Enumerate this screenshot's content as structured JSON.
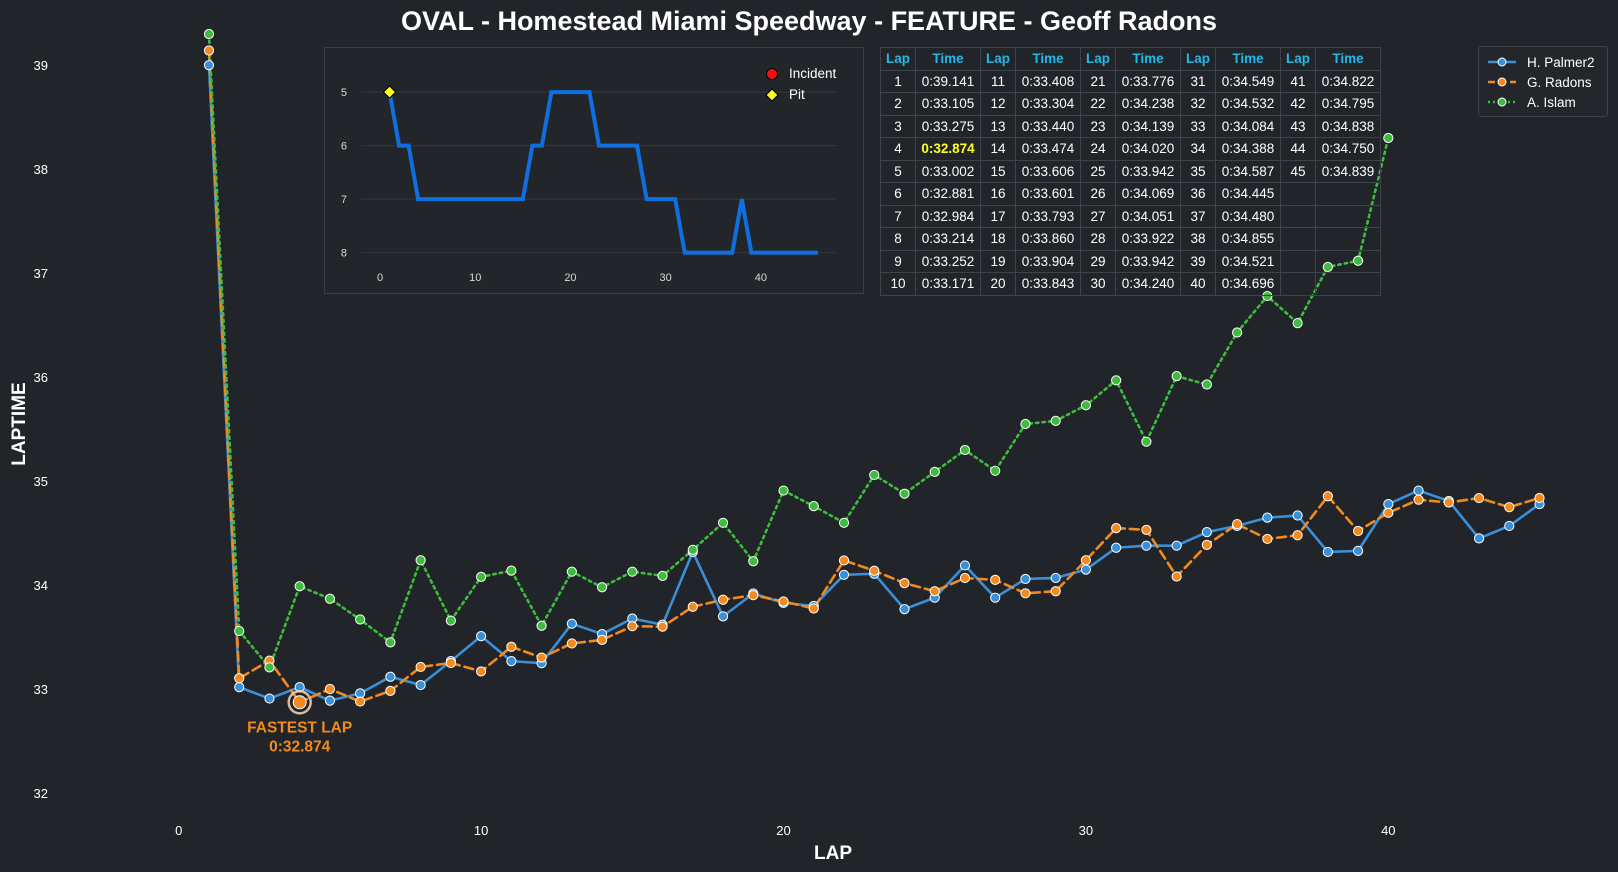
{
  "chart_data": {
    "type": "line",
    "title": "OVAL - Homestead Miami Speedway - FEATURE - Geoff Radons",
    "xlabel": "LAP",
    "ylabel": "LAPTIME",
    "xlim": [
      -3,
      47
    ],
    "ylim": [
      31.8,
      39.3
    ],
    "x_ticks": [
      0,
      10,
      20,
      30,
      40
    ],
    "y_ticks": [
      32,
      33,
      34,
      35,
      36,
      37,
      38,
      39
    ],
    "legend_position": "top-right",
    "series": [
      {
        "name": "H. Palmer2",
        "color": "#3a90d8",
        "style": "solid",
        "x": [
          1,
          2,
          3,
          4,
          5,
          6,
          7,
          8,
          9,
          10,
          11,
          12,
          13,
          14,
          15,
          16,
          17,
          18,
          19,
          20,
          21,
          22,
          23,
          24,
          25,
          26,
          27,
          28,
          29,
          30,
          31,
          32,
          33,
          34,
          35,
          36,
          37,
          38,
          39,
          40,
          41,
          42,
          43,
          44,
          45
        ],
        "y": [
          39.0,
          33.02,
          32.91,
          33.02,
          32.89,
          32.96,
          33.12,
          33.04,
          33.27,
          33.51,
          33.27,
          33.25,
          33.63,
          33.53,
          33.68,
          33.62,
          34.32,
          33.7,
          33.92,
          33.83,
          33.8,
          34.1,
          34.11,
          33.77,
          33.88,
          34.19,
          33.88,
          34.06,
          34.07,
          34.15,
          34.36,
          34.38,
          34.38,
          34.51,
          34.57,
          34.65,
          34.67,
          34.32,
          34.33,
          34.78,
          34.91,
          34.81,
          34.45,
          34.57,
          34.78
        ]
      },
      {
        "name": "G. Radons",
        "color": "#f28a20",
        "style": "dashed",
        "x": [
          1,
          2,
          3,
          4,
          5,
          6,
          7,
          8,
          9,
          10,
          11,
          12,
          13,
          14,
          15,
          16,
          17,
          18,
          19,
          20,
          21,
          22,
          23,
          24,
          25,
          26,
          27,
          28,
          29,
          30,
          31,
          32,
          33,
          34,
          35,
          36,
          37,
          38,
          39,
          40,
          41,
          42,
          43,
          44,
          45
        ],
        "y": [
          39.141,
          33.105,
          33.275,
          32.874,
          33.002,
          32.881,
          32.984,
          33.214,
          33.252,
          33.171,
          33.408,
          33.304,
          33.44,
          33.474,
          33.606,
          33.601,
          33.793,
          33.86,
          33.904,
          33.843,
          33.776,
          34.238,
          34.139,
          34.02,
          33.942,
          34.069,
          34.051,
          33.922,
          33.942,
          34.24,
          34.549,
          34.532,
          34.084,
          34.388,
          34.587,
          34.445,
          34.48,
          34.855,
          34.521,
          34.696,
          34.822,
          34.795,
          34.838,
          34.75,
          34.839
        ]
      },
      {
        "name": "A. Islam",
        "color": "#3fbb3f",
        "style": "dotted",
        "x": [
          1,
          2,
          3,
          4,
          5,
          6,
          7,
          8,
          9,
          10,
          11,
          12,
          13,
          14,
          15,
          16,
          17,
          18,
          19,
          20,
          21,
          22,
          23,
          24,
          25,
          26,
          27,
          28,
          29,
          30,
          31,
          32,
          33,
          34,
          35,
          36,
          37,
          38,
          39,
          40
        ],
        "y": [
          39.3,
          33.56,
          33.21,
          33.99,
          33.87,
          33.67,
          33.45,
          34.24,
          33.66,
          34.08,
          34.14,
          33.61,
          34.13,
          33.98,
          34.13,
          34.09,
          34.34,
          34.6,
          34.23,
          34.91,
          34.76,
          34.6,
          35.06,
          34.88,
          35.09,
          35.3,
          35.1,
          35.55,
          35.58,
          35.73,
          35.97,
          35.38,
          36.01,
          35.93,
          36.43,
          36.78,
          36.52,
          37.06,
          37.12,
          38.3
        ]
      }
    ],
    "annotation": {
      "line1": "FASTEST LAP",
      "line2": "0:32.874",
      "x": 4,
      "y": 32.874,
      "color": "#f28a20"
    },
    "inset": {
      "type": "line",
      "xlim": [
        -2,
        48
      ],
      "ylim": [
        8.25,
        4.55
      ],
      "x_ticks": [
        0,
        10,
        20,
        30,
        40
      ],
      "y_ticks": [
        5,
        6,
        7,
        8
      ],
      "line_color": "#0f6fe0",
      "x": [
        1,
        2,
        3,
        4,
        5,
        6,
        7,
        8,
        9,
        10,
        11,
        12,
        13,
        14,
        15,
        16,
        17,
        18,
        19,
        20,
        21,
        22,
        23,
        24,
        25,
        26,
        27,
        28,
        29,
        30,
        31,
        32,
        33,
        34,
        35,
        36,
        37,
        38,
        39,
        40,
        41,
        42,
        43,
        44,
        45,
        46
      ],
      "y": [
        5,
        6,
        6,
        7,
        7,
        7,
        7,
        7,
        7,
        7,
        7,
        7,
        7,
        7,
        7,
        6,
        6,
        5,
        5,
        5,
        5,
        5,
        6,
        6,
        6,
        6,
        6,
        7,
        7,
        7,
        7,
        8,
        8,
        8,
        8,
        8,
        8,
        7,
        8,
        8,
        8,
        8,
        8,
        8,
        8,
        8
      ],
      "legend": [
        {
          "label": "Incident",
          "color": "#ee1111",
          "marker": "circle"
        },
        {
          "label": "Pit",
          "color": "#ffff22",
          "marker": "diamond"
        }
      ],
      "pit_markers": [
        {
          "x": 1,
          "y": 5
        }
      ]
    },
    "table": {
      "headers": [
        "Lap",
        "Time",
        "Lap",
        "Time",
        "Lap",
        "Time",
        "Lap",
        "Time",
        "Lap",
        "Time"
      ],
      "rows": [
        [
          "1",
          "0:39.141",
          "11",
          "0:33.408",
          "21",
          "0:33.776",
          "31",
          "0:34.549",
          "41",
          "0:34.822"
        ],
        [
          "2",
          "0:33.105",
          "12",
          "0:33.304",
          "22",
          "0:34.238",
          "32",
          "0:34.532",
          "42",
          "0:34.795"
        ],
        [
          "3",
          "0:33.275",
          "13",
          "0:33.440",
          "23",
          "0:34.139",
          "33",
          "0:34.084",
          "43",
          "0:34.838"
        ],
        [
          "4",
          "0:32.874",
          "14",
          "0:33.474",
          "24",
          "0:34.020",
          "34",
          "0:34.388",
          "44",
          "0:34.750"
        ],
        [
          "5",
          "0:33.002",
          "15",
          "0:33.606",
          "25",
          "0:33.942",
          "35",
          "0:34.587",
          "45",
          "0:34.839"
        ],
        [
          "6",
          "0:32.881",
          "16",
          "0:33.601",
          "26",
          "0:34.069",
          "36",
          "0:34.445",
          "",
          ""
        ],
        [
          "7",
          "0:32.984",
          "17",
          "0:33.793",
          "27",
          "0:34.051",
          "37",
          "0:34.480",
          "",
          ""
        ],
        [
          "8",
          "0:33.214",
          "18",
          "0:33.860",
          "28",
          "0:33.922",
          "38",
          "0:34.855",
          "",
          ""
        ],
        [
          "9",
          "0:33.252",
          "19",
          "0:33.904",
          "29",
          "0:33.942",
          "39",
          "0:34.521",
          "",
          ""
        ],
        [
          "10",
          "0:33.171",
          "20",
          "0:33.843",
          "30",
          "0:34.240",
          "40",
          "0:34.696",
          "",
          ""
        ]
      ],
      "highlight": {
        "row": 3,
        "col": 1,
        "color": "#ffff22"
      }
    }
  }
}
